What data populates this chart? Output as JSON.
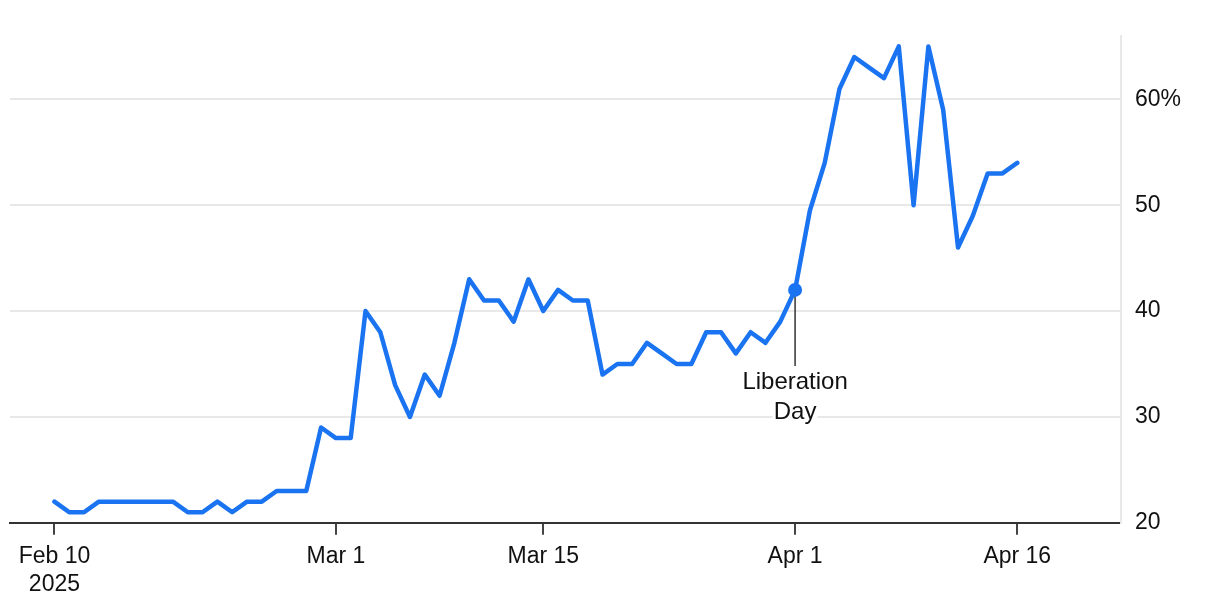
{
  "chart_data": {
    "type": "line",
    "x": [
      "2025-02-10",
      "2025-02-11",
      "2025-02-12",
      "2025-02-13",
      "2025-02-14",
      "2025-02-15",
      "2025-02-16",
      "2025-02-17",
      "2025-02-18",
      "2025-02-19",
      "2025-02-20",
      "2025-02-21",
      "2025-02-22",
      "2025-02-23",
      "2025-02-24",
      "2025-02-25",
      "2025-02-26",
      "2025-02-27",
      "2025-02-28",
      "2025-03-01",
      "2025-03-02",
      "2025-03-03",
      "2025-03-04",
      "2025-03-05",
      "2025-03-06",
      "2025-03-07",
      "2025-03-08",
      "2025-03-09",
      "2025-03-10",
      "2025-03-11",
      "2025-03-12",
      "2025-03-13",
      "2025-03-14",
      "2025-03-15",
      "2025-03-16",
      "2025-03-17",
      "2025-03-18",
      "2025-03-19",
      "2025-03-20",
      "2025-03-21",
      "2025-03-22",
      "2025-03-23",
      "2025-03-24",
      "2025-03-25",
      "2025-03-26",
      "2025-03-27",
      "2025-03-28",
      "2025-03-29",
      "2025-03-30",
      "2025-03-31",
      "2025-04-01",
      "2025-04-02",
      "2025-04-03",
      "2025-04-04",
      "2025-04-05",
      "2025-04-06",
      "2025-04-07",
      "2025-04-08",
      "2025-04-09",
      "2025-04-10",
      "2025-04-11",
      "2025-04-12",
      "2025-04-13",
      "2025-04-14",
      "2025-04-15",
      "2025-04-16"
    ],
    "series": [
      {
        "color": "#1a73f0",
        "values": [
          22,
          21,
          21,
          22,
          22,
          22,
          22,
          22,
          22,
          21,
          21,
          22,
          21,
          22,
          22,
          23,
          23,
          23,
          29,
          28,
          28,
          40,
          38,
          33,
          30,
          34,
          32,
          37,
          43,
          41,
          41,
          39,
          43,
          40,
          42,
          41,
          41,
          34,
          35,
          35,
          37,
          36,
          35,
          35,
          38,
          38,
          36,
          38,
          37,
          39,
          42,
          49.5,
          54,
          61,
          64,
          63,
          62,
          65,
          50,
          65,
          59,
          46,
          49,
          53,
          53,
          54
        ]
      }
    ],
    "xlim": [
      "2025-02-07",
      "2025-04-23"
    ],
    "xticks": [
      {
        "value": "2025-02-10",
        "label": "Feb 10\n2025"
      },
      {
        "value": "2025-03-01",
        "label": "Mar 1"
      },
      {
        "value": "2025-03-15",
        "label": "Mar 15"
      },
      {
        "value": "2025-04-01",
        "label": "Apr 1"
      },
      {
        "value": "2025-04-16",
        "label": "Apr 16"
      }
    ],
    "ylim": [
      20,
      66
    ],
    "yticks": [
      20,
      30,
      40,
      50,
      {
        "value": 60,
        "label": "60%"
      }
    ],
    "grid": "y",
    "legend": false,
    "marker": "none",
    "line_style": "solid",
    "annotations": [
      {
        "text": "Liberation Day",
        "x": "2025-04-01",
        "y": 42
      }
    ]
  }
}
